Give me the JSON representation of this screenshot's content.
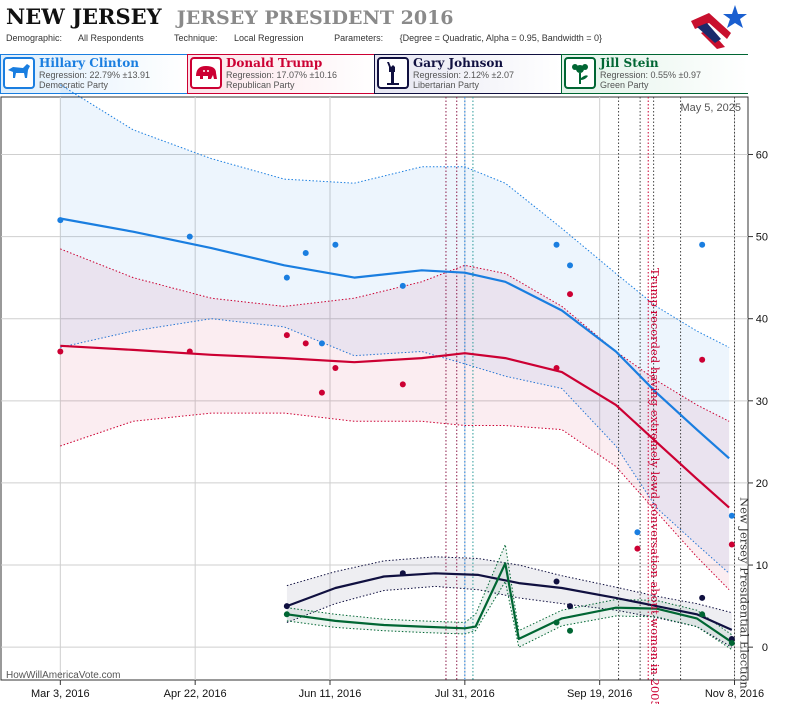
{
  "header": {
    "state": "NEW JERSEY",
    "race": "JERSEY PRESIDENT 2016",
    "demographic_label": "Demographic:",
    "demographic": "All Respondents",
    "technique_label": "Technique:",
    "technique": "Local Regression",
    "parameters_label": "Parameters:",
    "parameters": "{Degree = Quadratic, Alpha = 0.95, Bandwidth = 0}"
  },
  "candidates": [
    {
      "name": "Hillary Clinton",
      "regression": "Regression: 22.79% ±13.91",
      "party": "Democratic Party",
      "color": "#1a7ee0",
      "bg": "#eaf3fd",
      "icon": "donkey-icon"
    },
    {
      "name": "Donald Trump",
      "regression": "Regression: 17.07% ±10.16",
      "party": "Republican Party",
      "color": "#cc0033",
      "bg": "#fdeef2",
      "icon": "elephant-icon"
    },
    {
      "name": "Gary Johnson",
      "regression": "Regression: 2.12% ±2.07",
      "party": "Libertarian Party",
      "color": "#101040",
      "bg": "#eeeef6",
      "icon": "statue-of-liberty-icon"
    },
    {
      "name": "Jill Stein",
      "regression": "Regression: 0.55% ±0.97",
      "party": "Green Party",
      "color": "#006633",
      "bg": "#eaf6ef",
      "icon": "flower-icon"
    }
  ],
  "date_stamp": "May 5, 2025",
  "site_credit": "HowWillAmericaVote.com",
  "chart_data": {
    "type": "line",
    "x_ticks": [
      "Mar 3, 2016",
      "Apr 22, 2016",
      "Jun 11, 2016",
      "Jul 31, 2016",
      "Sep 19, 2016",
      "Nov 8, 2016"
    ],
    "y_ticks": [
      0,
      10,
      20,
      30,
      40,
      50,
      60
    ],
    "ylim": [
      -4,
      67
    ],
    "xlim": [
      "2016-02-10",
      "2016-11-13"
    ],
    "grid": true,
    "series": [
      {
        "name": "Hillary Clinton",
        "color": "#1a7ee0",
        "x": [
          "2016-03-03",
          "2016-03-30",
          "2016-04-28",
          "2016-05-25",
          "2016-06-20",
          "2016-07-15",
          "2016-07-31",
          "2016-08-15",
          "2016-09-05",
          "2016-09-25",
          "2016-10-10",
          "2016-10-25",
          "2016-11-06"
        ],
        "y": [
          52.2,
          50.6,
          48.6,
          46.5,
          45.0,
          45.9,
          45.6,
          44.5,
          41.0,
          36.0,
          31.0,
          26.5,
          23.0
        ],
        "upper": [
          68.5,
          63,
          59.5,
          57,
          56.5,
          58.5,
          58.5,
          56.5,
          51,
          45.5,
          41.5,
          38.5,
          36.5
        ],
        "lower": [
          36.5,
          38.5,
          40.0,
          39.0,
          35.5,
          36.0,
          34.5,
          33.0,
          31.5,
          24.5,
          17.0,
          12.5,
          9.0
        ],
        "points_x": [
          "2016-03-03",
          "2016-04-20",
          "2016-05-26",
          "2016-06-02",
          "2016-06-08",
          "2016-06-13",
          "2016-07-08",
          "2016-09-03",
          "2016-09-08",
          "2016-10-03",
          "2016-10-27",
          "2016-11-07"
        ],
        "points_y": [
          52,
          50,
          45,
          48,
          37,
          49,
          44,
          49,
          46.5,
          14,
          49,
          16
        ]
      },
      {
        "name": "Donald Trump",
        "color": "#cc0033",
        "x": [
          "2016-03-03",
          "2016-03-30",
          "2016-04-28",
          "2016-05-25",
          "2016-06-20",
          "2016-07-15",
          "2016-07-31",
          "2016-08-15",
          "2016-09-05",
          "2016-09-25",
          "2016-10-10",
          "2016-10-25",
          "2016-11-06"
        ],
        "y": [
          36.7,
          36.2,
          35.6,
          35.2,
          34.7,
          35.2,
          35.8,
          35.2,
          33.5,
          29.5,
          25.0,
          20.5,
          17.0
        ],
        "upper": [
          48.5,
          45,
          42.5,
          41.5,
          42.5,
          44.5,
          46.5,
          45.5,
          41.5,
          36,
          32.5,
          29.5,
          27.5
        ],
        "lower": [
          24.5,
          27.5,
          28.5,
          28.5,
          27.5,
          27.5,
          27.0,
          27.0,
          26.5,
          22.0,
          16.5,
          11.0,
          7.0
        ],
        "points_x": [
          "2016-03-03",
          "2016-04-20",
          "2016-05-26",
          "2016-06-02",
          "2016-06-08",
          "2016-06-13",
          "2016-07-08",
          "2016-09-03",
          "2016-09-08",
          "2016-10-03",
          "2016-10-27",
          "2016-11-07"
        ],
        "points_y": [
          36,
          36,
          38,
          37,
          31,
          34,
          32,
          34,
          43,
          12,
          35,
          12.5
        ]
      },
      {
        "name": "Gary Johnson",
        "color": "#101040",
        "x": [
          "2016-05-26",
          "2016-06-13",
          "2016-07-01",
          "2016-07-20",
          "2016-08-05",
          "2016-08-20",
          "2016-09-05",
          "2016-09-25",
          "2016-10-10",
          "2016-10-25",
          "2016-11-07"
        ],
        "y": [
          5.0,
          7.2,
          8.6,
          9.0,
          8.8,
          7.8,
          7.2,
          6.0,
          5.0,
          4.0,
          2.1
        ],
        "upper": [
          7.5,
          9.2,
          10.5,
          11.0,
          10.8,
          10.0,
          8.7,
          7.3,
          6.2,
          5.3,
          4.2
        ],
        "lower": [
          3.0,
          5.3,
          6.9,
          7.4,
          7.0,
          6.0,
          5.3,
          4.5,
          3.6,
          2.5,
          0.0
        ],
        "points_x": [
          "2016-05-26",
          "2016-07-08",
          "2016-09-03",
          "2016-09-08",
          "2016-10-27",
          "2016-11-07"
        ],
        "points_y": [
          5,
          9,
          8,
          5,
          6,
          1
        ]
      },
      {
        "name": "Jill Stein",
        "color": "#006633",
        "x": [
          "2016-05-26",
          "2016-06-13",
          "2016-07-01",
          "2016-07-15",
          "2016-07-31",
          "2016-08-04",
          "2016-08-15",
          "2016-08-20",
          "2016-09-05",
          "2016-09-25",
          "2016-10-10",
          "2016-10-25",
          "2016-11-07"
        ],
        "y": [
          4.0,
          3.2,
          2.7,
          2.5,
          2.3,
          2.5,
          10.2,
          1.0,
          3.5,
          4.8,
          4.7,
          3.5,
          0.6
        ],
        "upper": [
          4.8,
          4.0,
          3.4,
          3.2,
          3.0,
          4.0,
          12.5,
          2.0,
          4.5,
          5.8,
          5.7,
          4.5,
          1.5
        ],
        "lower": [
          3.2,
          2.4,
          2.0,
          1.8,
          1.6,
          2.0,
          8.0,
          0.0,
          2.6,
          3.8,
          3.7,
          2.5,
          -0.3
        ],
        "points_x": [
          "2016-05-26",
          "2016-09-03",
          "2016-09-08",
          "2016-10-27",
          "2016-11-07"
        ],
        "points_y": [
          4,
          3,
          2,
          4,
          0.5
        ]
      }
    ],
    "events": [
      {
        "date": "2016-07-24",
        "color": "#8b1a4a",
        "style": "dotted"
      },
      {
        "date": "2016-07-28",
        "color": "#8b1a4a",
        "style": "dotted"
      },
      {
        "date": "2016-07-31",
        "color": "#1a7ee0",
        "style": "dotted"
      },
      {
        "date": "2016-08-03",
        "color": "#2a9a99",
        "style": "dotted"
      },
      {
        "date": "2016-09-26",
        "color": "#444444",
        "style": "dotted"
      },
      {
        "date": "2016-10-04",
        "color": "#444444",
        "style": "dotted"
      },
      {
        "date": "2016-10-07",
        "color": "#cc0033",
        "style": "dotted"
      },
      {
        "date": "2016-10-09",
        "color": "#444444",
        "style": "dotted"
      },
      {
        "date": "2016-10-19",
        "color": "#444444",
        "style": "dotted"
      },
      {
        "date": "2016-11-08",
        "color": "#444444",
        "style": "dotted"
      }
    ],
    "annotations": [
      {
        "text": "Trump recorded having extremely lewd conversation about women in 2005",
        "date": "2016-10-07",
        "color": "#cc0033"
      },
      {
        "text": "New Jersey Presidential Election",
        "date": "2016-11-08",
        "color": "#333333"
      }
    ]
  }
}
